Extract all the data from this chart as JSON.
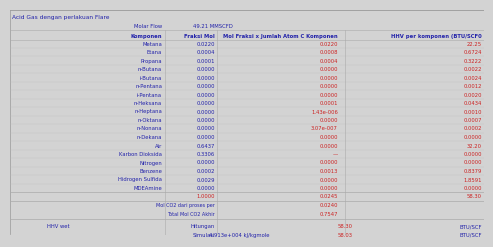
{
  "title": "Acid Gas dengan perlakuan Flare",
  "molar_flow_label": "Molar Flow",
  "molar_flow_value": "49.21 MMSCFD",
  "col_headers": [
    "Komponen",
    "Fraksi Mol",
    "Mol Fraksi x Jumlah Atom C Komponen",
    "HHV per komponen (BTU/SCF0"
  ],
  "components": [
    "Metana",
    "Etana",
    "Propana",
    "n-Butana",
    "i-Butana",
    "n-Pentana",
    "i-Pentana",
    "n-Heksana",
    "n-Heptana",
    "n-Oktana",
    "n-Nonana",
    "n-Dekana",
    "Air",
    "Karbon Dioksida",
    "Nitrogen",
    "Benzene",
    "Hidrogen Sulfida",
    "MDEAmine"
  ],
  "fraksi_mol": [
    "0.0220",
    "0.0004",
    "0.0001",
    "0.0000",
    "0.0000",
    "0.0000",
    "0.0000",
    "0.0000",
    "0.0000",
    "0.0000",
    "0.0000",
    "0.0000",
    "0.6437",
    "0.3306",
    "0.0000",
    "0.0002",
    "0.0029",
    "0.0000"
  ],
  "mol_fraksi_c": [
    "0.0220",
    "0.0008",
    "0.0004",
    "0.0000",
    "0.0000",
    "0.0000",
    "0.0000",
    "0.0001",
    "1.43e-006",
    "0.0000",
    "3.07e-007",
    "0.0000",
    "0.0000",
    "—",
    "0.0000",
    "0.0013",
    "0.0000",
    "0.0000"
  ],
  "hhv_per_komponen": [
    "22.25",
    "0.6724",
    "0.3222",
    "0.0022",
    "0.0024",
    "0.0012",
    "0.0020",
    "0.0434",
    "0.0010",
    "0.0007",
    "0.0002",
    "0.0000",
    "32.20",
    "0.0000",
    "0.0000",
    "0.8379",
    "1.8591",
    "0.0000"
  ],
  "total_fraksi": "1.0000",
  "total_mol_c": "0.0245",
  "total_hhv": "58.30",
  "mol_co2_proses_label": "Mol CO2 dari proses per",
  "mol_co2_proses_val": "0.0240",
  "total_mol_co2_label": "Total Mol CO2 Akhir",
  "total_mol_co2_val": "0.7547",
  "hhv_wet_label": "HHV wet",
  "hitungan_label": "Hitungan",
  "simulasi_label": "Simulasi",
  "simulasi_value": "4.913e+004 kJ/kgmole",
  "hhv_hitungan": "58.30",
  "hhv_simulasi": "58.03",
  "btu_scf_label": "BTU/SCF",
  "bg_color": "#d3d3d3",
  "line_color": "#aaaaaa",
  "blue": "#2222aa",
  "red": "#cc2222",
  "font_size": 3.8,
  "title_font_size": 4.2
}
